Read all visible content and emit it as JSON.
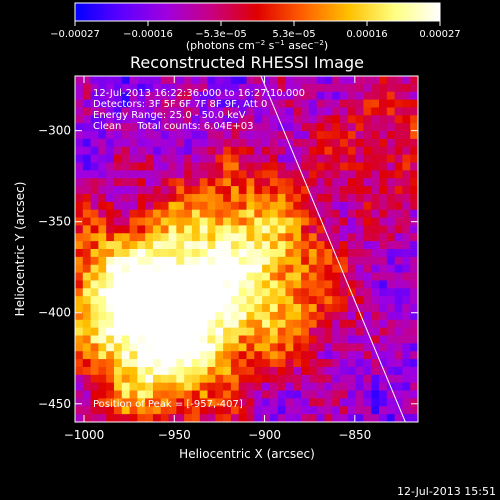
{
  "chart_data": {
    "type": "heatmap",
    "title": "Reconstructed RHESSI Image",
    "xlabel": "Heliocentric X (arcsec)",
    "ylabel": "Heliocentric Y (arcsec)",
    "xlim": [
      -1005,
      -815
    ],
    "ylim": [
      -460,
      -270
    ],
    "x_ticks": [
      -1000,
      -950,
      -900,
      -850
    ],
    "x_tick_labels": [
      "−1000",
      "−950",
      "−900",
      "−850"
    ],
    "y_ticks": [
      -300,
      -350,
      -400,
      -450
    ],
    "y_tick_labels": [
      "−300",
      "−350",
      "−400",
      "−450"
    ],
    "colorbar": {
      "min": -0.00027,
      "max": 0.00027,
      "tick_labels": [
        "−0.00027",
        "−0.00016",
        "−5.3e−05",
        "5.3e−05",
        "0.00016",
        "0.00027"
      ],
      "unit_parts": [
        "(photons cm",
        "−2",
        " s",
        "−1",
        " asec",
        "−2",
        ")"
      ],
      "colors": [
        "#0000ff",
        "#5b00ff",
        "#a000e0",
        "#c80080",
        "#e00000",
        "#ff6000",
        "#ffc000",
        "#ffff80",
        "#ffffff"
      ]
    },
    "annotations": [
      "12-Jul-2013 16:22:36.000 to 16:27:10.000",
      "Detectors: 3F 5F 6F 7F 8F 9F, Att 0",
      "Energy Range: 25.0 - 50.0 keV",
      "Clean     Total counts: 6.04E+03"
    ],
    "peak_label": "Position of Peak = [-957,-407]",
    "peak": [
      -957,
      -407
    ],
    "sources": [
      {
        "x": -950,
        "y": -400,
        "amp": 1.0
      },
      {
        "x": -985,
        "y": -385,
        "amp": 0.6
      },
      {
        "x": -915,
        "y": -350,
        "amp": 0.55
      },
      {
        "x": -890,
        "y": -390,
        "amp": 0.5
      },
      {
        "x": -960,
        "y": -440,
        "amp": 0.4
      },
      {
        "x": -830,
        "y": -305,
        "amp": 0.35
      }
    ],
    "solar_limb_line": {
      "x1": -902,
      "y1": -270,
      "x2": -822,
      "y2": -460
    },
    "grid": false
  },
  "footer": {
    "timestamp": "12-Jul-2013 15:51"
  }
}
